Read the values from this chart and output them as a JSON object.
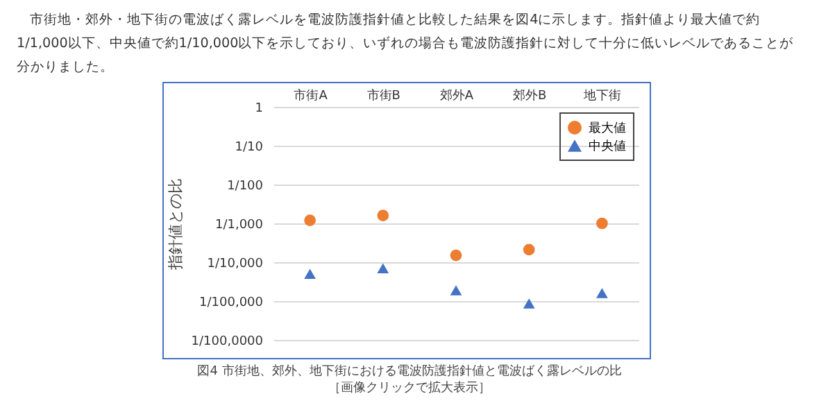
{
  "chart_data": {
    "type": "scatter",
    "title": "市街地・郊外・地下街の電波ばく露レベルを電波防護指針値と比較した結果を図4に示します。指針値より最大値で約1/1,000以下、中央値で約1/10,000以下を示しており、いずれの場合も電波防護指針に対して十分に低いレベルであることが分かりました。",
    "ylabel": "指針値との比",
    "annotations": [
      "図4 市街地、郊外、地下街における電波防護指針値と電波ばく露レベルの比",
      "［画像クリックで拡大表示］"
    ],
    "categories": [
      "市街A",
      "市街B",
      "郊外A",
      "郊外B",
      "地下街"
    ],
    "series": [
      {
        "name": "最大値",
        "color": "#ed7d31",
        "marker": "circle",
        "values": [
          0.0012,
          0.0016,
          0.00015,
          0.00021,
          0.001
        ]
      },
      {
        "name": "中央値",
        "color": "#4472c4",
        "marker": "triangle",
        "values": [
          5e-05,
          7e-05,
          1.9e-05,
          8.7e-06,
          1.6e-05
        ]
      }
    ],
    "log": true,
    "ylim": [
      1e-06,
      1
    ],
    "yticks": [
      1,
      {
        "value": 0.1,
        "label": "1/10"
      },
      {
        "value": 0.01,
        "label": "1/100"
      },
      {
        "value": 0.001,
        "label": "1/1,000"
      },
      {
        "value": 0.0001,
        "label": "1/10,000"
      },
      {
        "value": 1e-05,
        "label": "1/100,000"
      },
      {
        "value": 1e-06,
        "label": "1/100,0000"
      }
    ],
    "grid": "y",
    "legend": "top right"
  }
}
